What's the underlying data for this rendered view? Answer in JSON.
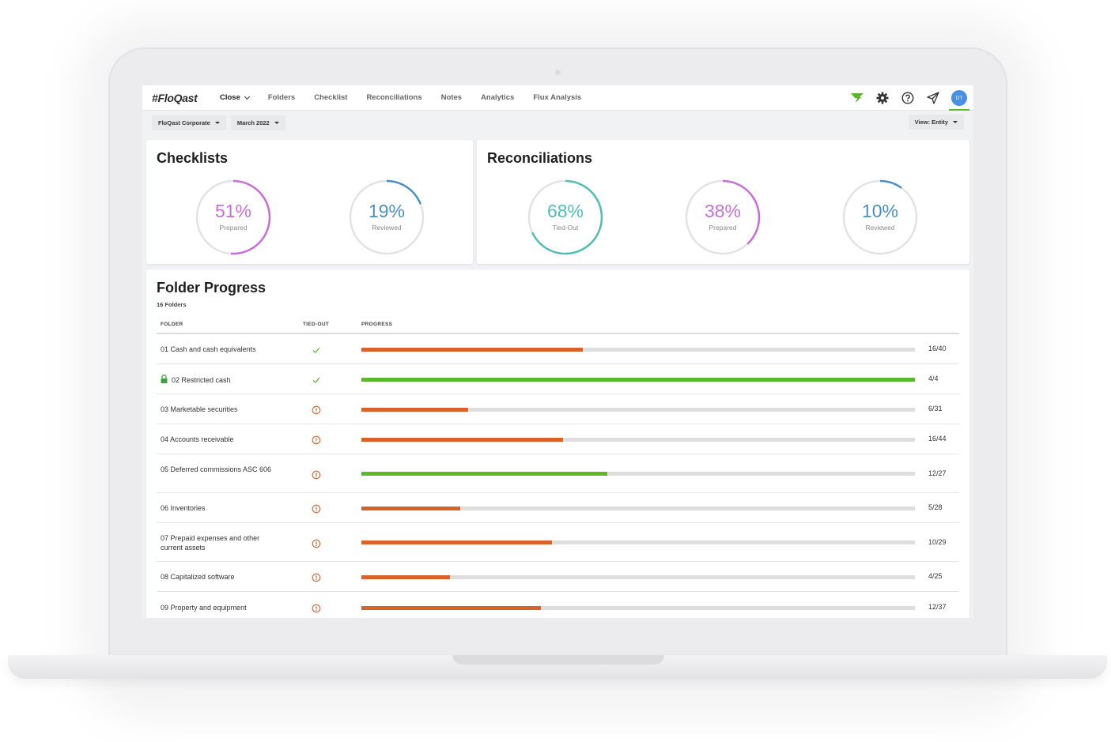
{
  "app": {
    "logo": "#FloQast",
    "nav": [
      "Close",
      "Folders",
      "Checklist",
      "Reconciliations",
      "Notes",
      "Analytics",
      "Flux Analysis"
    ],
    "user_initials": "DT"
  },
  "filters": {
    "entity": "FloQast Corporate",
    "period": "March 2022",
    "view": "View: Entity"
  },
  "colors": {
    "accent_purple": "#c96ed9",
    "accent_blue": "#4a90c8",
    "accent_teal": "#4dbfb5",
    "bar_orange": "#d9612a",
    "bar_green": "#5cb82a",
    "status_check": "#5cb82a",
    "status_alert": "#d9612a"
  },
  "checklists": {
    "title": "Checklists",
    "gauges": [
      {
        "value": "51%",
        "label": "Prepared",
        "fraction": 0.51,
        "color": "#c96ed9"
      },
      {
        "value": "19%",
        "label": "Reviewed",
        "fraction": 0.19,
        "color": "#4a90c8"
      }
    ]
  },
  "reconciliations": {
    "title": "Reconciliations",
    "gauges": [
      {
        "value": "68%",
        "label": "Tied-Out",
        "fraction": 0.68,
        "color": "#4dbfb5"
      },
      {
        "value": "38%",
        "label": "Prepared",
        "fraction": 0.38,
        "color": "#c96ed9"
      },
      {
        "value": "10%",
        "label": "Reviewed",
        "fraction": 0.1,
        "color": "#4a90c8"
      }
    ]
  },
  "folder_progress": {
    "title": "Folder Progress",
    "subtitle": "16 Folders",
    "headers": {
      "folder": "FOLDER",
      "tied_out": "TIED-OUT",
      "progress": "PROGRESS"
    },
    "rows": [
      {
        "name": "01 Cash and cash equivalents",
        "status": "check",
        "locked": false,
        "done": 16,
        "total": 40,
        "count": "16/40",
        "color": "orange"
      },
      {
        "name": "02 Restricted cash",
        "status": "check",
        "locked": true,
        "done": 4,
        "total": 4,
        "count": "4/4",
        "color": "green"
      },
      {
        "name": "03 Marketable securities",
        "status": "alert",
        "locked": false,
        "done": 6,
        "total": 31,
        "count": "6/31",
        "color": "orange"
      },
      {
        "name": "04 Accounts receivable",
        "status": "alert",
        "locked": false,
        "done": 16,
        "total": 44,
        "count": "16/44",
        "color": "orange"
      },
      {
        "name": "05 Deferred commissions ASC 606",
        "status": "alert",
        "locked": false,
        "done": 12,
        "total": 27,
        "count": "12/27",
        "color": "green"
      },
      {
        "name": "06 Inventories",
        "status": "alert",
        "locked": false,
        "done": 5,
        "total": 28,
        "count": "5/28",
        "color": "orange"
      },
      {
        "name": "07 Prepaid expenses and other current assets",
        "status": "alert",
        "locked": false,
        "done": 10,
        "total": 29,
        "count": "10/29",
        "color": "orange"
      },
      {
        "name": "08 Capitalized software",
        "status": "alert",
        "locked": false,
        "done": 4,
        "total": 25,
        "count": "4/25",
        "color": "orange"
      },
      {
        "name": "09 Property and equipment",
        "status": "alert",
        "locked": false,
        "done": 12,
        "total": 37,
        "count": "12/37",
        "color": "orange"
      }
    ]
  }
}
